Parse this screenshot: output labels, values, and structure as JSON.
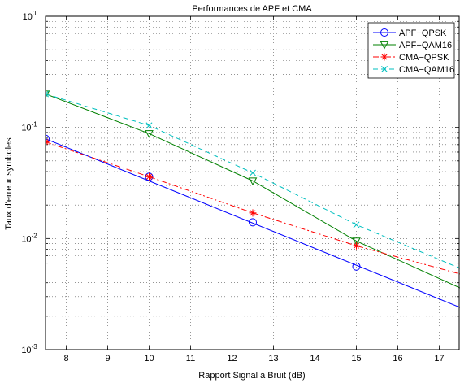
{
  "chart_data": {
    "type": "line",
    "title": "Performances de APF et CMA",
    "xlabel": "Rapport Signal à Bruit (dB)",
    "ylabel": "Taux d'erreur symboles",
    "xlim": [
      7.5,
      17.5
    ],
    "ylim": [
      0.001,
      1
    ],
    "yscale": "log",
    "grid": true,
    "legend_position": "top-right",
    "x_ticks": [
      8,
      9,
      10,
      11,
      12,
      13,
      14,
      15,
      16,
      17
    ],
    "y_ticks": [
      0.001,
      0.01,
      0.1,
      1
    ],
    "series": [
      {
        "name": "APF−QPSK",
        "color": "#0000ff",
        "dash": "solid",
        "marker": "circle",
        "line_x": [
          7.5,
          17.5
        ],
        "line_y": [
          0.079,
          0.0024
        ],
        "marker_x": [
          7.5,
          10,
          12.5,
          15
        ],
        "marker_y": [
          0.079,
          0.036,
          0.014,
          0.0056
        ]
      },
      {
        "name": "APF−QAM16",
        "color": "#008000",
        "dash": "solid",
        "marker": "triangle-down",
        "line_x": [
          7.5,
          10,
          12.5,
          15,
          17.5
        ],
        "line_y": [
          0.2,
          0.088,
          0.033,
          0.0095,
          0.0036
        ],
        "marker_x": [
          7.5,
          10,
          12.5,
          15
        ],
        "marker_y": [
          0.2,
          0.088,
          0.033,
          0.0095
        ]
      },
      {
        "name": "CMA−QPSK",
        "color": "#ff0000",
        "dash": "dashdot",
        "marker": "star",
        "line_x": [
          7.5,
          10,
          12.5,
          15,
          17.5
        ],
        "line_y": [
          0.074,
          0.036,
          0.017,
          0.0086,
          0.0048
        ],
        "marker_x": [
          7.5,
          10,
          12.5,
          15
        ],
        "marker_y": [
          0.074,
          0.036,
          0.017,
          0.0086
        ]
      },
      {
        "name": "CMA−QAM16",
        "color": "#00bfbf",
        "dash": "dashed",
        "marker": "x",
        "line_x": [
          7.5,
          10,
          12.5,
          15,
          17.5
        ],
        "line_y": [
          0.2,
          0.104,
          0.039,
          0.0133,
          0.0054
        ],
        "marker_x": [
          7.5,
          10,
          12.5,
          15
        ],
        "marker_y": [
          0.2,
          0.104,
          0.039,
          0.0133
        ]
      }
    ]
  }
}
